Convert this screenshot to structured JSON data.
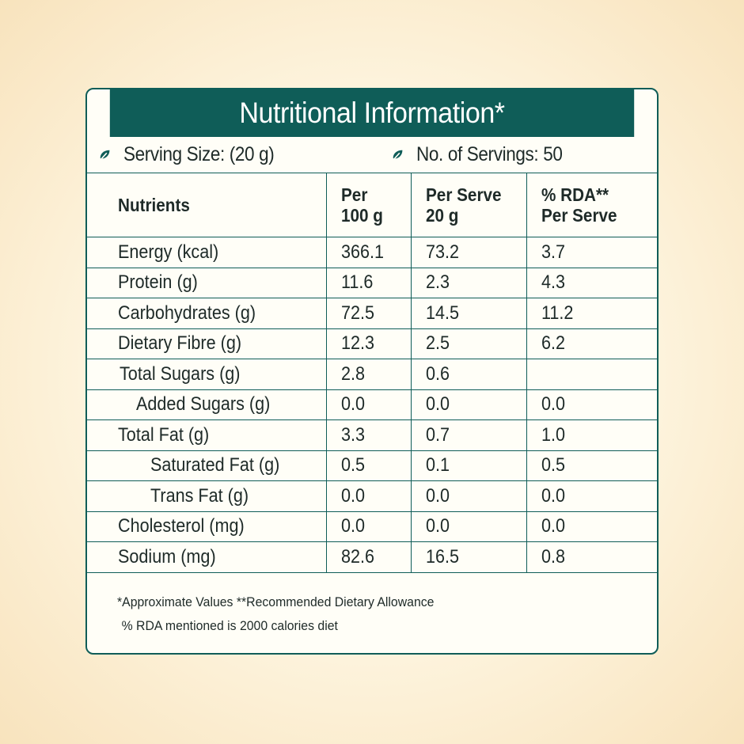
{
  "title": "Nutritional Information*",
  "serving": {
    "serving_size": "Serving Size: (20 g)",
    "servings_count": "No. of Servings: 50",
    "icon": "leaf-icon"
  },
  "colors": {
    "accent": "#0f5d58",
    "background": "#fdf3dc"
  },
  "table": {
    "headers": {
      "nutrients": "Nutrients",
      "per100_line1": "Per",
      "per100_line2": "100 g",
      "perserve_line1": "Per Serve",
      "perserve_line2": "20 g",
      "rda_line1": "% RDA**",
      "rda_line2": "Per Serve"
    },
    "rows": [
      {
        "name": "Energy (kcal)",
        "per100": "366.1",
        "perserve": "73.2",
        "rda": "3.7"
      },
      {
        "name": "Protein (g)",
        "per100": "11.6",
        "perserve": "2.3",
        "rda": "4.3"
      },
      {
        "name": "Carbohydrates (g)",
        "per100": "72.5",
        "perserve": "14.5",
        "rda": "11.2"
      },
      {
        "name": "Dietary Fibre (g)",
        "per100": "12.3",
        "perserve": "2.5",
        "rda": "6.2"
      },
      {
        "name": "Total Sugars (g)",
        "per100": "2.8",
        "perserve": "0.6",
        "rda": ""
      },
      {
        "name": "Added Sugars (g)",
        "per100": "0.0",
        "perserve": "0.0",
        "rda": "0.0"
      },
      {
        "name": "Total Fat (g)",
        "per100": "3.3",
        "perserve": "0.7",
        "rda": "1.0"
      },
      {
        "name": "Saturated Fat (g)",
        "per100": "0.5",
        "perserve": "0.1",
        "rda": "0.5"
      },
      {
        "name": "Trans Fat (g)",
        "per100": "0.0",
        "perserve": "0.0",
        "rda": "0.0"
      },
      {
        "name": "Cholesterol (mg)",
        "per100": "0.0",
        "perserve": "0.0",
        "rda": "0.0"
      },
      {
        "name": "Sodium (mg)",
        "per100": "82.6",
        "perserve": "16.5",
        "rda": "0.8"
      }
    ]
  },
  "footnotes": {
    "line1": "*Approximate Values  **Recommended Dietary Allowance",
    "line2": "% RDA mentioned is 2000 calories diet"
  }
}
